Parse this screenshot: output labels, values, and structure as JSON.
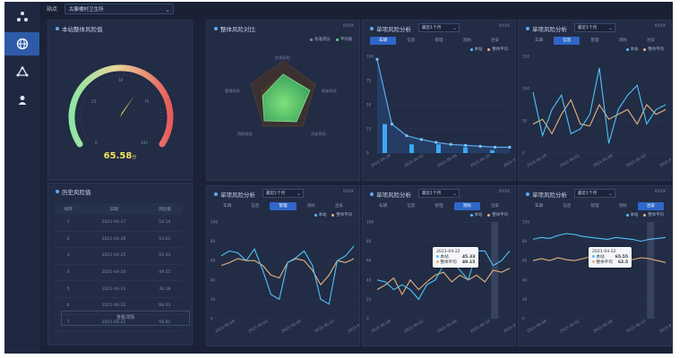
{
  "topbar": {
    "site_label": "站点",
    "site_value": "古藤楼村卫生所"
  },
  "sidebar": {
    "items": [
      {
        "icon": "network-icon"
      },
      {
        "icon": "globe-icon"
      },
      {
        "icon": "cycle-icon"
      },
      {
        "icon": "user-icon"
      }
    ]
  },
  "gauge_panel": {
    "title": "本站整体风险值",
    "value": "65.58",
    "unit": "分",
    "ticks": [
      "0",
      "25",
      "50",
      "75",
      "100"
    ]
  },
  "history_panel": {
    "title": "历史风险值",
    "columns": [
      "排序",
      "日期",
      "风险值"
    ],
    "rows": [
      [
        "1",
        "2021-04-27",
        "54.14"
      ],
      [
        "2",
        "2021-04-26",
        "53.61"
      ],
      [
        "3",
        "2021-04-25",
        "65.41"
      ],
      [
        "4",
        "2021-04-24",
        "49.55"
      ],
      [
        "5",
        "2021-04-23",
        "36.18"
      ],
      [
        "6",
        "2021-04-22",
        "66.03"
      ],
      [
        "7",
        "2021-04-21",
        "56.91"
      ]
    ],
    "more_button": "查看详情"
  },
  "radar_panel": {
    "title": "整体风险对比",
    "tag": "XXXX",
    "legend": [
      "标准得分",
      "平均值"
    ],
    "axes": [
      "信息风险",
      "管理风险",
      "消防风险",
      "治安风险",
      "保安风险"
    ]
  },
  "analysis_panels": [
    {
      "title": "单项风险分析",
      "range": "最近1个月",
      "tag": "XXXX",
      "tabs": [
        "车辆",
        "信息",
        "管理",
        "消防",
        "治安"
      ],
      "active": 0
    },
    {
      "title": "单项风险分析",
      "range": "最近1个月",
      "tag": "XXXX",
      "tabs": [
        "车辆",
        "信息",
        "管理",
        "消防",
        "治安"
      ],
      "active": 1
    },
    {
      "title": "单项风险分析",
      "range": "最近1个月",
      "tag": "XXXX",
      "tabs": [
        "车辆",
        "信息",
        "管理",
        "消防",
        "治安"
      ],
      "active": 2
    },
    {
      "title": "单项风险分析",
      "range": "最近1个月",
      "tag": "XXXX",
      "tabs": [
        "车辆",
        "信息",
        "管理",
        "消防",
        "治安"
      ],
      "active": 3
    },
    {
      "title": "单项风险分析",
      "range": "最近1个月",
      "tag": "XXXX",
      "tabs": [
        "车辆",
        "信息",
        "管理",
        "消防",
        "治安"
      ],
      "active": 4
    }
  ],
  "legend": {
    "series_a": "本站",
    "series_b": "整体平均"
  },
  "tooltips": [
    {
      "date": "2021-04-22",
      "a_label": "本站",
      "a_value": "45.33",
      "b_label": "整体平均",
      "b_value": "49.15"
    },
    {
      "date": "2021-04-22",
      "a_label": "本站",
      "a_value": "65.55",
      "b_label": "整体平均",
      "b_value": "62.5"
    }
  ],
  "colors": {
    "accent": "#2f66c9",
    "series_a": "#4fc3f7",
    "series_b": "#e8b37c",
    "gauge_value": "#f2e35a"
  }
}
